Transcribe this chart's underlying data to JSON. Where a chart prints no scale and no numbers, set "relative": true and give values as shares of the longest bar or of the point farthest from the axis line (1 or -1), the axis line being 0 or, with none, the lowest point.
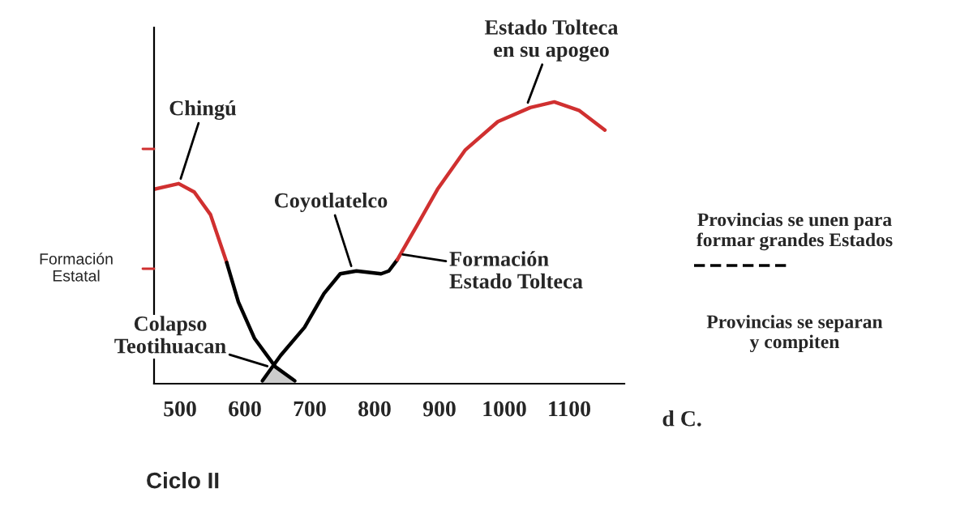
{
  "chart_data": {
    "type": "line",
    "relative": true,
    "xlabel": "d C.",
    "xlim": [
      460,
      1185
    ],
    "xticks": [
      500,
      600,
      700,
      800,
      900,
      1000,
      1100
    ],
    "grid": false,
    "marker": "none",
    "line_style": "solid",
    "series": [
      {
        "color": "#d03030",
        "x": [
          460,
          498,
          522,
          547,
          572
        ],
        "values": [
          0.69,
          0.71,
          0.68,
          0.6,
          0.43
        ]
      },
      {
        "color": "#000000",
        "x": [
          572,
          590,
          615,
          647,
          677
        ],
        "values": [
          0.43,
          0.29,
          0.16,
          0.06,
          0.01
        ]
      },
      {
        "color": "#000000",
        "x": [
          627,
          655,
          692,
          722,
          747,
          772,
          810,
          822,
          835
        ],
        "values": [
          0.01,
          0.1,
          0.2,
          0.32,
          0.39,
          0.4,
          0.39,
          0.4,
          0.44
        ]
      },
      {
        "color": "#d03030",
        "x": [
          835,
          865,
          897,
          940,
          990,
          1040,
          1077,
          1115,
          1155
        ],
        "values": [
          0.44,
          0.56,
          0.69,
          0.83,
          0.93,
          0.98,
          1.0,
          0.97,
          0.9
        ]
      }
    ],
    "annotations": [
      {
        "text": "Chingú",
        "x": 500,
        "y": 0.72
      },
      {
        "text": "Coyotlatelco",
        "x": 765,
        "y": 0.41
      },
      {
        "text": "Formación\nEstado Tolteca",
        "x": 840,
        "y": 0.46
      },
      {
        "text": "Colapso\nTeotihuacan",
        "x": 638,
        "y": 0.06
      },
      {
        "text": "Estado Tolteca\nen su apogeo",
        "x": 1035,
        "y": 0.99
      },
      "Provincias se unen para\nformar grandes Estados",
      "Provincias se separan\ny compiten",
      "Ciclo II",
      "Formación\nEstatal"
    ]
  }
}
